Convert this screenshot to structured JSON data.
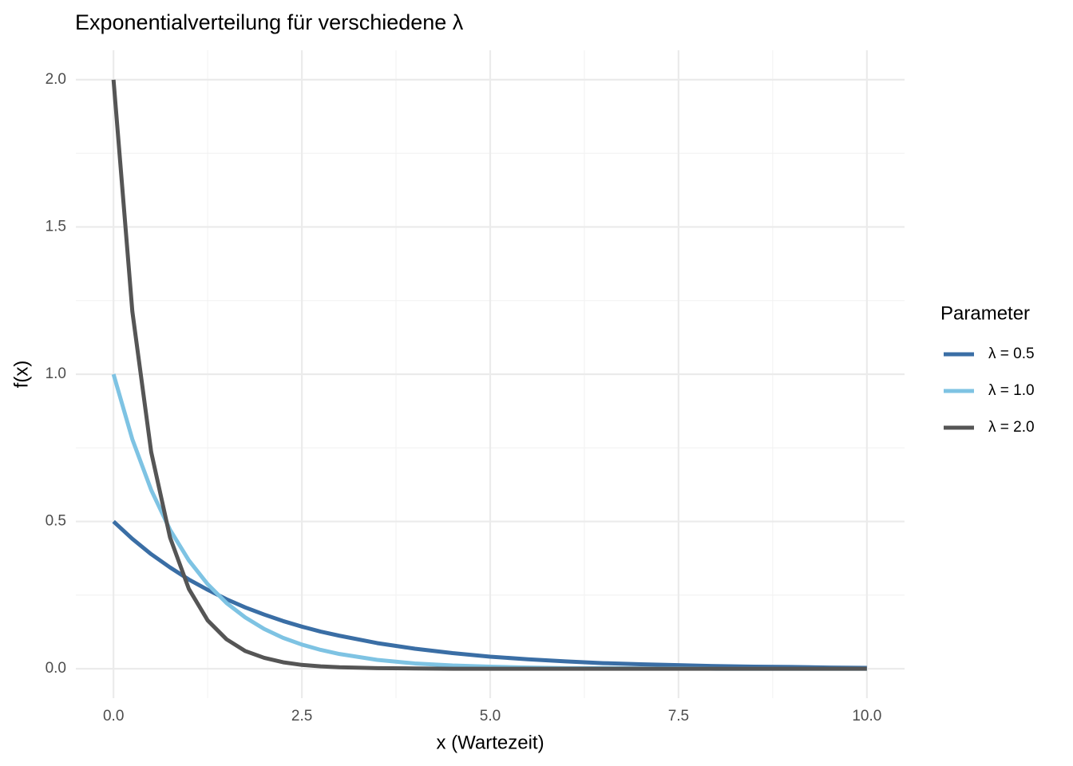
{
  "chart_data": {
    "type": "line",
    "title": "Exponentialverteilung für verschiedene λ",
    "x_label": "x (Wartezeit)",
    "y_label": "f(x)",
    "legend_title": "Parameter",
    "legend_position": "right",
    "grid": true,
    "x": [
      0,
      0.25,
      0.5,
      0.75,
      1,
      1.25,
      1.5,
      1.75,
      2,
      2.25,
      2.5,
      2.75,
      3,
      3.5,
      4,
      4.5,
      5,
      5.5,
      6,
      6.5,
      7,
      7.5,
      8,
      8.5,
      9,
      9.5,
      10
    ],
    "series": [
      {
        "name": "λ = 0.5",
        "color": "#3a6ea5",
        "values": [
          0.5,
          0.441,
          0.389,
          0.344,
          0.303,
          0.268,
          0.236,
          0.208,
          0.184,
          0.162,
          0.143,
          0.126,
          0.112,
          0.087,
          0.068,
          0.053,
          0.041,
          0.032,
          0.025,
          0.019,
          0.015,
          0.012,
          0.009,
          0.007,
          0.006,
          0.004,
          0.003
        ]
      },
      {
        "name": "λ = 1.0",
        "color": "#7ec3e3",
        "values": [
          1,
          0.779,
          0.607,
          0.472,
          0.368,
          0.287,
          0.223,
          0.174,
          0.135,
          0.105,
          0.082,
          0.064,
          0.05,
          0.03,
          0.018,
          0.011,
          0.007,
          0.004,
          0.002,
          0.002,
          0.001,
          0.001,
          0,
          0,
          0,
          0,
          0
        ]
      },
      {
        "name": "λ = 2.0",
        "color": "#555555",
        "values": [
          2,
          1.213,
          0.736,
          0.446,
          0.271,
          0.164,
          0.1,
          0.06,
          0.037,
          0.022,
          0.013,
          0.008,
          0.005,
          0.002,
          0.001,
          0,
          0,
          0,
          0,
          0,
          0,
          0,
          0,
          0,
          0,
          0,
          0
        ]
      }
    ],
    "xlim": [
      -0.5,
      10.5
    ],
    "ylim": [
      -0.1,
      2.1
    ],
    "xticks": [
      {
        "value": 0,
        "label": "0.0"
      },
      2.5,
      {
        "value": 5,
        "label": "5.0"
      },
      7.5,
      {
        "value": 10,
        "label": "10.0"
      }
    ],
    "yticks": [
      {
        "value": 0,
        "label": "0.0"
      },
      0.5,
      {
        "value": 1,
        "label": "1.0"
      },
      1.5,
      {
        "value": 2,
        "label": "2.0"
      }
    ]
  }
}
